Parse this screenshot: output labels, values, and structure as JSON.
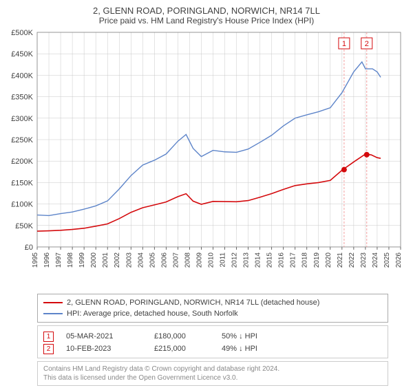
{
  "title": "2, GLENN ROAD, PORINGLAND, NORWICH, NR14 7LL",
  "subtitle": "Price paid vs. HM Land Registry's House Price Index (HPI)",
  "chart": {
    "type": "line",
    "background_color": "#ffffff",
    "grid_color": "#c8c8c8",
    "grid_stroke": 0.5,
    "y_axis": {
      "label_prefix": "£",
      "min": 0,
      "max": 500000,
      "tick_step": 50000,
      "ticks": [
        "£0",
        "£50K",
        "£100K",
        "£150K",
        "£200K",
        "£250K",
        "£300K",
        "£350K",
        "£400K",
        "£450K",
        "£500K"
      ],
      "label_fontsize": 11
    },
    "x_axis": {
      "min": 1995,
      "max": 2026,
      "ticks": [
        1995,
        1996,
        1997,
        1998,
        1999,
        2000,
        2001,
        2002,
        2003,
        2004,
        2005,
        2006,
        2007,
        2008,
        2009,
        2010,
        2011,
        2012,
        2013,
        2014,
        2015,
        2016,
        2017,
        2018,
        2019,
        2020,
        2021,
        2022,
        2023,
        2024,
        2025,
        2026
      ],
      "label_fontsize": 10,
      "rotation": -90
    },
    "series": [
      {
        "name": "property_price",
        "label": "2, GLENN ROAD, PORINGLAND, NORWICH, NR14 7LL (detached house)",
        "color": "#d4090c",
        "line_width": 1.6,
        "data": [
          [
            1995,
            37000
          ],
          [
            1996,
            37500
          ],
          [
            1997,
            38500
          ],
          [
            1998,
            41000
          ],
          [
            1999,
            43500
          ],
          [
            2000,
            48000
          ],
          [
            2001,
            54000
          ],
          [
            2002,
            66000
          ],
          [
            2003,
            80000
          ],
          [
            2004,
            92000
          ],
          [
            2005,
            98000
          ],
          [
            2006,
            104000
          ],
          [
            2007,
            118000
          ],
          [
            2007.7,
            124000
          ],
          [
            2008.3,
            106000
          ],
          [
            2009,
            100000
          ],
          [
            2010,
            106000
          ],
          [
            2011,
            105000
          ],
          [
            2012,
            106000
          ],
          [
            2013,
            108000
          ],
          [
            2014,
            115000
          ],
          [
            2015,
            125000
          ],
          [
            2016,
            134000
          ],
          [
            2017,
            142000
          ],
          [
            2018,
            148000
          ],
          [
            2019,
            150000
          ],
          [
            2020,
            154000
          ],
          [
            2021,
            180000
          ],
          [
            2022,
            198000
          ],
          [
            2023,
            215000
          ],
          [
            2023.5,
            216000
          ],
          [
            2024,
            208000
          ],
          [
            2024.3,
            205000
          ]
        ]
      },
      {
        "name": "hpi",
        "label": "HPI: Average price, detached house, South Norfolk",
        "color": "#5d84c9",
        "line_width": 1.4,
        "data": [
          [
            1995,
            75000
          ],
          [
            1996,
            73000
          ],
          [
            1997,
            77000
          ],
          [
            1998,
            82000
          ],
          [
            1999,
            88000
          ],
          [
            2000,
            95000
          ],
          [
            2001,
            108000
          ],
          [
            2002,
            135000
          ],
          [
            2003,
            165000
          ],
          [
            2004,
            192000
          ],
          [
            2005,
            202000
          ],
          [
            2006,
            215000
          ],
          [
            2007,
            248000
          ],
          [
            2007.7,
            262000
          ],
          [
            2008.3,
            228000
          ],
          [
            2009,
            212000
          ],
          [
            2010,
            225000
          ],
          [
            2011,
            220000
          ],
          [
            2012,
            222000
          ],
          [
            2013,
            228000
          ],
          [
            2014,
            242000
          ],
          [
            2015,
            262000
          ],
          [
            2016,
            282000
          ],
          [
            2017,
            298000
          ],
          [
            2018,
            310000
          ],
          [
            2019,
            315000
          ],
          [
            2020,
            322000
          ],
          [
            2021,
            362000
          ],
          [
            2022,
            408000
          ],
          [
            2022.7,
            428000
          ],
          [
            2023,
            418000
          ],
          [
            2023.6,
            415000
          ],
          [
            2024,
            405000
          ],
          [
            2024.3,
            398000
          ]
        ]
      }
    ],
    "markers": [
      {
        "n": 1,
        "x": 2021.18,
        "y_top": 500000,
        "color": "#d4090c",
        "line_color": "#f4a0a0"
      },
      {
        "n": 2,
        "x": 2023.11,
        "y_top": 500000,
        "color": "#d4090c",
        "line_color": "#f4a0a0"
      }
    ],
    "sale_points": [
      {
        "x": 2021.18,
        "y": 180000,
        "color": "#d4090c"
      },
      {
        "x": 2023.11,
        "y": 215000,
        "color": "#d4090c"
      }
    ]
  },
  "legend": {
    "items": [
      {
        "color": "#d4090c",
        "label": "2, GLENN ROAD, PORINGLAND, NORWICH, NR14 7LL (detached house)"
      },
      {
        "color": "#5d84c9",
        "label": "HPI: Average price, detached house, South Norfolk"
      }
    ]
  },
  "sales": [
    {
      "n": "1",
      "date": "05-MAR-2021",
      "price": "£180,000",
      "hpi": "50% ↓ HPI",
      "marker_color": "#d4090c"
    },
    {
      "n": "2",
      "date": "10-FEB-2023",
      "price": "£215,000",
      "hpi": "49% ↓ HPI",
      "marker_color": "#d4090c"
    }
  ],
  "licence": {
    "line1": "Contains HM Land Registry data © Crown copyright and database right 2024.",
    "line2": "This data is licensed under the Open Government Licence v3.0."
  }
}
